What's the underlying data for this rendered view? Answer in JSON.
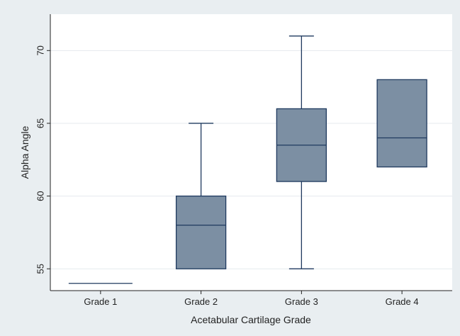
{
  "chart_data": {
    "type": "box",
    "xlabel": "Acetabular Cartilage Grade",
    "ylabel": "Alpha Angle",
    "ylim": [
      53.5,
      72.5
    ],
    "yticks": [
      55,
      60,
      65,
      70
    ],
    "grid": true,
    "legend": "none",
    "categories": [
      "Grade 1",
      "Grade 2",
      "Grade 3",
      "Grade 4"
    ],
    "boxes": [
      {
        "category": "Grade 1",
        "min": 54,
        "q1": 54,
        "median": 54,
        "q3": 54,
        "max": 54
      },
      {
        "category": "Grade 2",
        "min": 55,
        "q1": 55,
        "median": 58,
        "q3": 60,
        "max": 65
      },
      {
        "category": "Grade 3",
        "min": 55,
        "q1": 61,
        "median": 63.5,
        "q3": 66,
        "max": 71
      },
      {
        "category": "Grade 4",
        "min": 62,
        "q1": 62,
        "median": 64,
        "q3": 68,
        "max": 68
      }
    ],
    "colors": {
      "box_fill": "#7c8fa3",
      "box_stroke": "#1f3a5f",
      "grid": "#e6eaee",
      "plot_bg": "#ffffff"
    }
  }
}
